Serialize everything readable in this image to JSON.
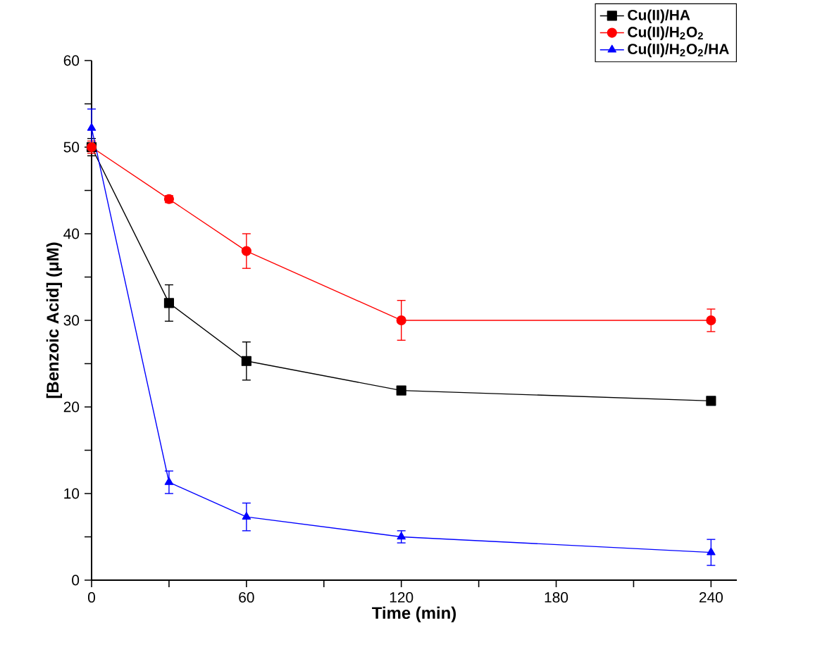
{
  "chart_data": {
    "type": "line",
    "xlabel": "Time (min)",
    "ylabel": "[Benzoic Acid] (μM)",
    "xlim": [
      0,
      250
    ],
    "ylim": [
      0,
      60
    ],
    "xticks": [
      0,
      {
        "value": 30,
        "label": null
      },
      60,
      {
        "value": 90,
        "label": null
      },
      120,
      {
        "value": 150,
        "label": null
      },
      180,
      {
        "value": 210,
        "label": null
      },
      240
    ],
    "yticks": [
      0,
      {
        "value": 5,
        "label": null
      },
      10,
      {
        "value": 15,
        "label": null
      },
      20,
      {
        "value": 25,
        "label": null
      },
      30,
      {
        "value": 35,
        "label": null
      },
      40,
      {
        "value": 45,
        "label": null
      },
      50,
      {
        "value": 55,
        "label": null
      },
      60
    ],
    "x": [
      0,
      30,
      60,
      120,
      240
    ],
    "grid": false,
    "legend": "top right",
    "line_style": "solid",
    "series": [
      {
        "name": "Cu(II)/HA",
        "color": "#000000",
        "marker": "square",
        "values": [
          50,
          32,
          25.3,
          21.9,
          20.7
        ],
        "errors": [
          1,
          2.1,
          2.2,
          0.4,
          0.4
        ]
      },
      {
        "name": "Cu(II)/H$_{2}$O$_{2}$",
        "color": "#ff0000",
        "marker": "circle",
        "values": [
          50,
          44,
          38,
          30,
          30
        ],
        "errors": [
          0.7,
          0.4,
          2,
          2.3,
          1.3
        ]
      },
      {
        "name": "Cu(II)/H$_{2}$O$_{2}$/HA",
        "color": "#0000ff",
        "marker": "triangle",
        "values": [
          52.2,
          11.3,
          7.3,
          5,
          3.2
        ],
        "errors": [
          2.2,
          1.3,
          1.6,
          0.7,
          1.5
        ]
      }
    ]
  }
}
